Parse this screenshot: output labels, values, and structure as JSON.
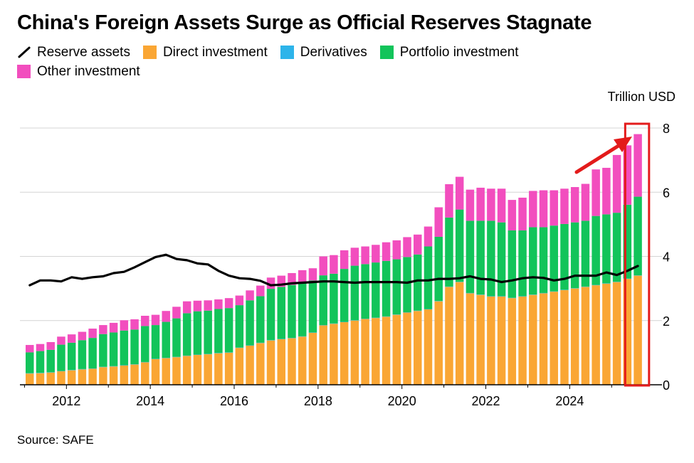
{
  "title": "China's Foreign Assets Surge as Official Reserves Stagnate",
  "source": "Source: SAFE",
  "legend": [
    {
      "label": "Reserve assets",
      "kind": "line",
      "color": "#000000"
    },
    {
      "label": "Direct investment",
      "kind": "box",
      "color": "#FAA634"
    },
    {
      "label": "Derivatives",
      "kind": "box",
      "color": "#2DB4EA"
    },
    {
      "label": "Portfolio investment",
      "kind": "box",
      "color": "#12C45A"
    },
    {
      "label": "Other investment",
      "kind": "box",
      "color": "#F24EBE"
    }
  ],
  "chart_data": {
    "type": "bar",
    "unit": "Trillion USD",
    "ylim": [
      0,
      8
    ],
    "y_ticks": [
      0,
      2,
      4,
      6,
      8
    ],
    "x_ticks": [
      "2012",
      "2014",
      "2016",
      "2018",
      "2020",
      "2022",
      "2024"
    ],
    "x_tick_index": [
      4,
      12,
      20,
      28,
      36,
      44,
      52
    ],
    "grid": true,
    "stacked": true,
    "annotation": "red arrow and red box highlighting the latest bar",
    "series": [
      {
        "name": "Direct investment",
        "color": "#FAA634",
        "values": [
          0.35,
          0.36,
          0.38,
          0.42,
          0.45,
          0.48,
          0.5,
          0.55,
          0.57,
          0.6,
          0.63,
          0.7,
          0.8,
          0.83,
          0.86,
          0.9,
          0.93,
          0.95,
          0.98,
          1.0,
          1.15,
          1.22,
          1.3,
          1.38,
          1.42,
          1.45,
          1.5,
          1.62,
          1.85,
          1.9,
          1.95,
          2.0,
          2.05,
          2.08,
          2.12,
          2.18,
          2.25,
          2.3,
          2.35,
          2.6,
          3.05,
          3.2,
          2.85,
          2.8,
          2.75,
          2.75,
          2.7,
          2.75,
          2.8,
          2.85,
          2.9,
          2.95,
          3.0,
          3.05,
          3.1,
          3.15,
          3.2,
          3.3,
          3.4
        ]
      },
      {
        "name": "Derivatives",
        "color": "#2DB4EA",
        "values": [
          0.01,
          0.01,
          0.01,
          0.01,
          0.01,
          0.01,
          0.01,
          0.01,
          0.01,
          0.01,
          0.01,
          0.01,
          0.01,
          0.01,
          0.01,
          0.01,
          0.01,
          0.01,
          0.01,
          0.01,
          0.01,
          0.01,
          0.01,
          0.01,
          0.01,
          0.01,
          0.01,
          0.01,
          0.01,
          0.01,
          0.01,
          0.01,
          0.01,
          0.01,
          0.01,
          0.01,
          0.01,
          0.01,
          0.01,
          0.01,
          0.01,
          0.01,
          0.01,
          0.01,
          0.01,
          0.01,
          0.01,
          0.01,
          0.01,
          0.01,
          0.01,
          0.01,
          0.01,
          0.01,
          0.01,
          0.01,
          0.01,
          0.01,
          0.01
        ]
      },
      {
        "name": "Portfolio investment",
        "color": "#12C45A",
        "values": [
          0.65,
          0.68,
          0.7,
          0.82,
          0.85,
          0.9,
          0.95,
          1.02,
          1.05,
          1.08,
          1.08,
          1.12,
          1.05,
          1.12,
          1.2,
          1.32,
          1.35,
          1.35,
          1.37,
          1.38,
          1.32,
          1.4,
          1.45,
          1.6,
          1.62,
          1.65,
          1.68,
          1.62,
          1.55,
          1.55,
          1.65,
          1.7,
          1.7,
          1.72,
          1.73,
          1.72,
          1.72,
          1.75,
          1.95,
          2.0,
          2.15,
          2.25,
          2.25,
          2.3,
          2.35,
          2.3,
          2.1,
          2.05,
          2.1,
          2.05,
          2.05,
          2.05,
          2.05,
          2.05,
          2.15,
          2.15,
          2.15,
          2.3,
          2.45
        ]
      },
      {
        "name": "Other investment",
        "color": "#F24EBE",
        "values": [
          0.23,
          0.22,
          0.24,
          0.25,
          0.26,
          0.26,
          0.29,
          0.28,
          0.3,
          0.32,
          0.32,
          0.32,
          0.32,
          0.34,
          0.36,
          0.37,
          0.33,
          0.32,
          0.3,
          0.31,
          0.3,
          0.31,
          0.33,
          0.35,
          0.35,
          0.37,
          0.38,
          0.38,
          0.59,
          0.58,
          0.58,
          0.56,
          0.55,
          0.55,
          0.58,
          0.59,
          0.62,
          0.62,
          0.62,
          0.92,
          1.04,
          1.02,
          0.97,
          1.03,
          1.0,
          1.05,
          0.95,
          1.02,
          1.13,
          1.15,
          1.1,
          1.1,
          1.1,
          1.15,
          1.45,
          1.45,
          1.8,
          1.85,
          1.95
        ]
      }
    ],
    "line": {
      "name": "Reserve assets",
      "color": "#000000",
      "values": [
        3.1,
        3.25,
        3.25,
        3.22,
        3.35,
        3.3,
        3.35,
        3.38,
        3.48,
        3.52,
        3.66,
        3.82,
        3.98,
        4.05,
        3.92,
        3.88,
        3.78,
        3.75,
        3.55,
        3.4,
        3.32,
        3.3,
        3.24,
        3.1,
        3.12,
        3.16,
        3.18,
        3.2,
        3.22,
        3.22,
        3.2,
        3.18,
        3.2,
        3.2,
        3.2,
        3.2,
        3.18,
        3.25,
        3.25,
        3.3,
        3.3,
        3.32,
        3.38,
        3.3,
        3.28,
        3.2,
        3.25,
        3.32,
        3.35,
        3.33,
        3.25,
        3.3,
        3.4,
        3.4,
        3.4,
        3.5,
        3.42,
        3.55,
        3.7
      ]
    }
  }
}
